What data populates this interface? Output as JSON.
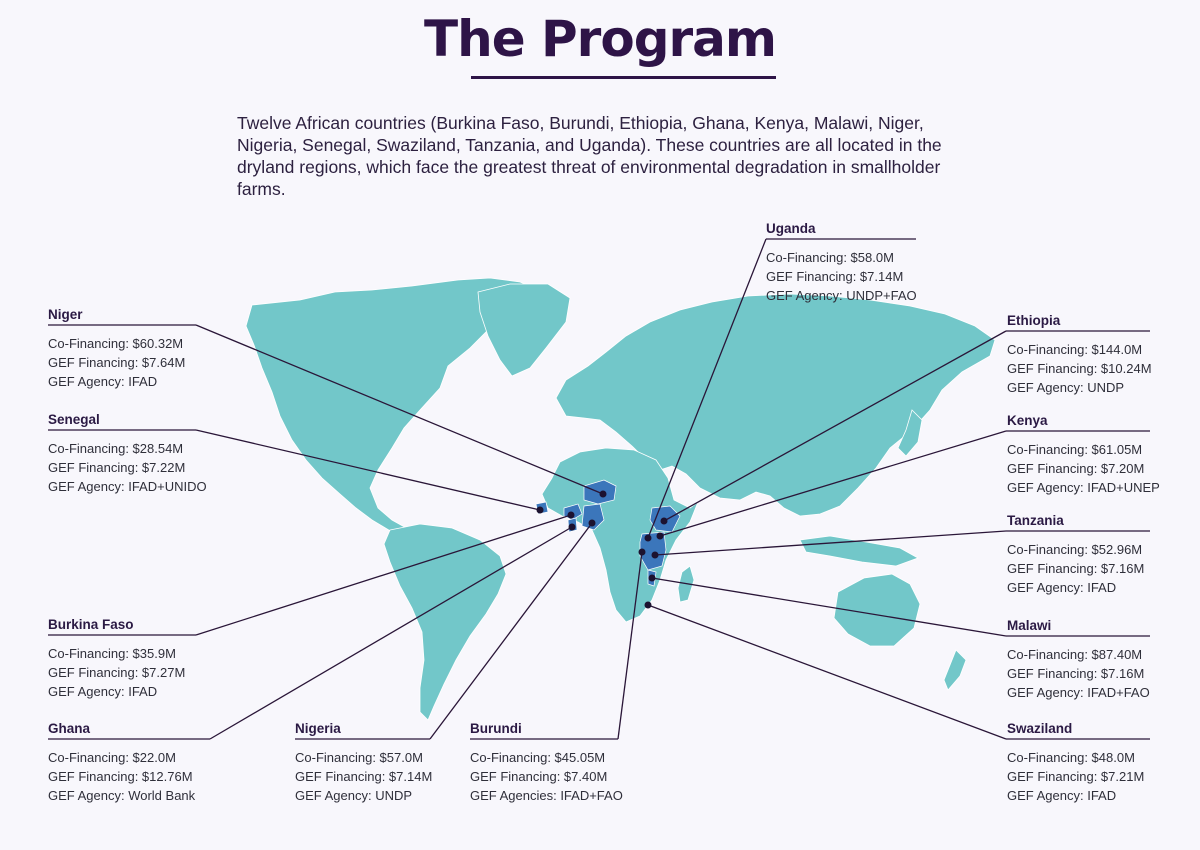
{
  "title": "The Program",
  "intro": "Twelve African countries (Burkina Faso, Burundi, Ethiopia, Ghana, Kenya, Malawi, Niger, Nigeria, Senegal, Swaziland, Tanzania, and Uganda). These countries are all located in the dryland regions, which face the greatest threat of environmental degradation in smallholder farms.",
  "colors": {
    "land": "#72c7c9",
    "highlight": "#3b76bb",
    "leader": "#2a1638",
    "title": "#2e1447"
  },
  "countries": [
    {
      "id": "uganda",
      "name": "Uganda",
      "lines": [
        "Co-Financing: $58.0M",
        "GEF Financing: $7.14M",
        "GEF Agency: UNDP+FAO"
      ]
    },
    {
      "id": "niger",
      "name": "Niger",
      "lines": [
        "Co-Financing: $60.32M",
        "GEF Financing: $7.64M",
        "GEF Agency: IFAD"
      ]
    },
    {
      "id": "ethiopia",
      "name": "Ethiopia",
      "lines": [
        "Co-Financing: $144.0M",
        "GEF Financing: $10.24M",
        "GEF Agency: UNDP"
      ]
    },
    {
      "id": "senegal",
      "name": "Senegal",
      "lines": [
        "Co-Financing: $28.54M",
        "GEF Financing: $7.22M",
        "GEF Agency: IFAD+UNIDO"
      ]
    },
    {
      "id": "kenya",
      "name": "Kenya",
      "lines": [
        "Co-Financing: $61.05M",
        "GEF Financing: $7.20M",
        "GEF Agency: IFAD+UNEP"
      ]
    },
    {
      "id": "tanzania",
      "name": "Tanzania",
      "lines": [
        "Co-Financing: $52.96M",
        "GEF Financing: $7.16M",
        "GEF Agency: IFAD"
      ]
    },
    {
      "id": "burkina",
      "name": "Burkina Faso",
      "lines": [
        "Co-Financing: $35.9M",
        "GEF Financing: $7.27M",
        "GEF Agency: IFAD"
      ]
    },
    {
      "id": "malawi",
      "name": "Malawi",
      "lines": [
        "Co-Financing: $87.40M",
        "GEF Financing: $7.16M",
        "GEF Agency: IFAD+FAO"
      ]
    },
    {
      "id": "ghana",
      "name": "Ghana",
      "lines": [
        "Co-Financing: $22.0M",
        "GEF Financing: $12.76M",
        "GEF Agency: World Bank"
      ]
    },
    {
      "id": "nigeria",
      "name": "Nigeria",
      "lines": [
        "Co-Financing: $57.0M",
        "GEF Financing: $7.14M",
        "GEF Agency: UNDP"
      ]
    },
    {
      "id": "burundi",
      "name": "Burundi",
      "lines": [
        "Co-Financing: $45.05M",
        "GEF Financing: $7.40M",
        "GEF Agencies: IFAD+FAO"
      ]
    },
    {
      "id": "swaziland",
      "name": "Swaziland",
      "lines": [
        "Co-Financing: $48.0M",
        "GEF Financing: $7.21M",
        "GEF Agency: IFAD"
      ]
    }
  ]
}
